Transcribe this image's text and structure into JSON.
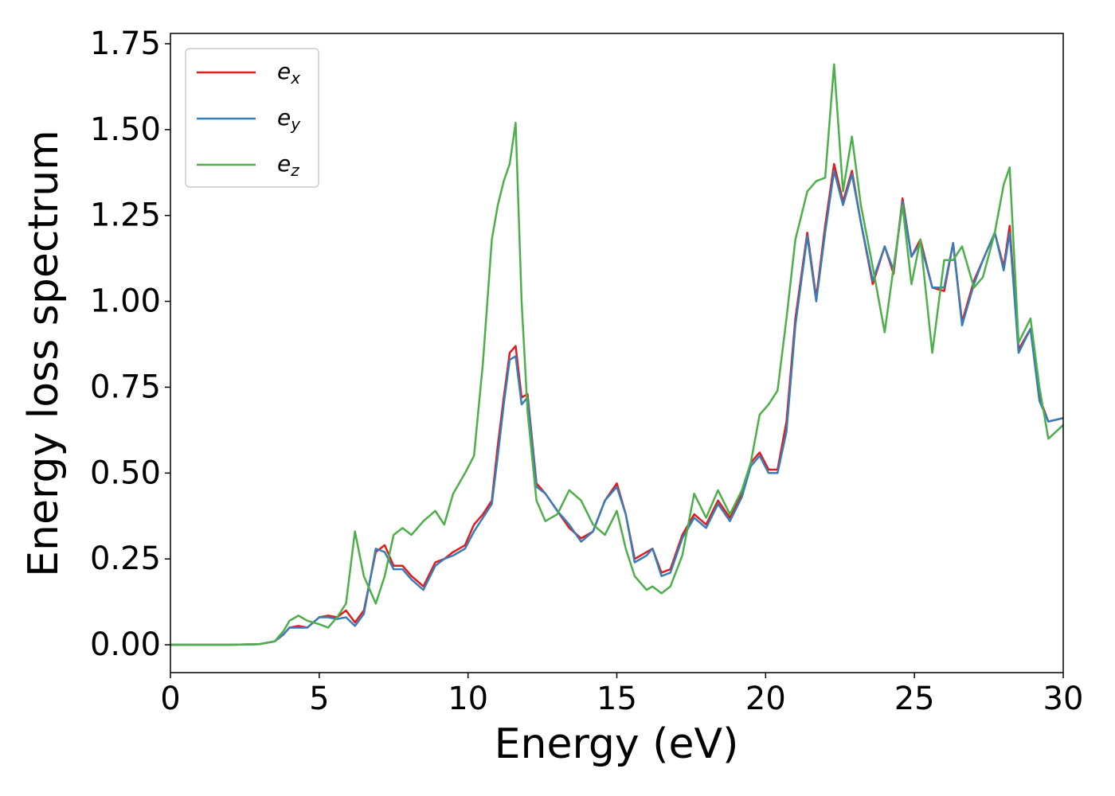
{
  "chart_data": {
    "type": "line",
    "x_label": "Energy (eV)",
    "y_label": "Energy loss spectrum",
    "xlim": [
      0,
      30
    ],
    "ylim": [
      -0.081,
      1.78
    ],
    "xticks": [
      0,
      5,
      10,
      15,
      20,
      25,
      30
    ],
    "yticks": [
      {
        "value": 0,
        "label": "0.00"
      },
      {
        "value": 0.25,
        "label": "0.25"
      },
      {
        "value": 0.5,
        "label": "0.50"
      },
      {
        "value": 0.75,
        "label": "0.75"
      },
      {
        "value": 1,
        "label": "1.00"
      },
      {
        "value": 1.25,
        "label": "1.25"
      },
      {
        "value": 1.5,
        "label": "1.50"
      },
      {
        "value": 1.75,
        "label": "1.75"
      }
    ],
    "grid": false,
    "legend": "upper left",
    "x": [
      0,
      1,
      2,
      3,
      3.5,
      3.8,
      4.0,
      4.3,
      4.6,
      5.0,
      5.3,
      5.6,
      5.9,
      6.2,
      6.5,
      6.9,
      7.2,
      7.5,
      7.8,
      8.1,
      8.5,
      8.9,
      9.2,
      9.5,
      9.9,
      10.2,
      10.5,
      10.8,
      11.0,
      11.2,
      11.4,
      11.6,
      11.8,
      12.0,
      12.3,
      12.6,
      13.0,
      13.4,
      13.8,
      14.2,
      14.6,
      15.0,
      15.3,
      15.6,
      16.0,
      16.2,
      16.5,
      16.8,
      17.2,
      17.6,
      18.0,
      18.4,
      18.8,
      19.2,
      19.5,
      19.8,
      20.1,
      20.4,
      20.7,
      21.0,
      21.4,
      21.7,
      22.0,
      22.3,
      22.6,
      22.9,
      23.2,
      23.6,
      24.0,
      24.3,
      24.6,
      24.9,
      25.2,
      25.6,
      26.0,
      26.3,
      26.6,
      27.0,
      27.3,
      27.7,
      28.0,
      28.2,
      28.5,
      28.9,
      29.2,
      29.5,
      30.0
    ],
    "series": [
      {
        "name": "ex",
        "color": "#e41a1c",
        "values": [
          0,
          0,
          0,
          0.002,
          0.01,
          0.03,
          0.05,
          0.055,
          0.05,
          0.08,
          0.085,
          0.08,
          0.1,
          0.065,
          0.1,
          0.27,
          0.29,
          0.23,
          0.23,
          0.2,
          0.17,
          0.24,
          0.25,
          0.27,
          0.29,
          0.35,
          0.38,
          0.42,
          0.58,
          0.72,
          0.85,
          0.87,
          0.72,
          0.73,
          0.47,
          0.44,
          0.39,
          0.34,
          0.31,
          0.33,
          0.42,
          0.47,
          0.38,
          0.25,
          0.27,
          0.28,
          0.21,
          0.22,
          0.32,
          0.38,
          0.35,
          0.42,
          0.37,
          0.44,
          0.53,
          0.56,
          0.51,
          0.51,
          0.65,
          0.95,
          1.2,
          1.01,
          1.22,
          1.4,
          1.29,
          1.38,
          1.23,
          1.05,
          1.16,
          1.08,
          1.3,
          1.13,
          1.18,
          1.04,
          1.03,
          1.17,
          0.94,
          1.06,
          1.12,
          1.2,
          1.1,
          1.22,
          0.86,
          0.92,
          0.72,
          0.65,
          0.66
        ]
      },
      {
        "name": "ey",
        "color": "#377eb8",
        "values": [
          0,
          0,
          0,
          0.002,
          0.01,
          0.03,
          0.05,
          0.05,
          0.05,
          0.08,
          0.08,
          0.075,
          0.08,
          0.055,
          0.09,
          0.28,
          0.27,
          0.22,
          0.22,
          0.19,
          0.16,
          0.23,
          0.25,
          0.26,
          0.28,
          0.33,
          0.37,
          0.41,
          0.55,
          0.7,
          0.83,
          0.84,
          0.7,
          0.72,
          0.46,
          0.44,
          0.39,
          0.35,
          0.3,
          0.33,
          0.42,
          0.46,
          0.38,
          0.24,
          0.26,
          0.28,
          0.2,
          0.21,
          0.31,
          0.37,
          0.34,
          0.41,
          0.36,
          0.43,
          0.52,
          0.55,
          0.5,
          0.5,
          0.62,
          0.93,
          1.19,
          1.0,
          1.2,
          1.38,
          1.28,
          1.37,
          1.23,
          1.06,
          1.16,
          1.09,
          1.29,
          1.13,
          1.17,
          1.04,
          1.04,
          1.17,
          0.93,
          1.05,
          1.12,
          1.2,
          1.09,
          1.2,
          0.85,
          0.92,
          0.71,
          0.65,
          0.66
        ]
      },
      {
        "name": "ez",
        "color": "#4daf4a",
        "values": [
          0,
          0,
          0,
          0.002,
          0.01,
          0.04,
          0.07,
          0.085,
          0.07,
          0.06,
          0.05,
          0.08,
          0.12,
          0.33,
          0.2,
          0.12,
          0.2,
          0.32,
          0.34,
          0.32,
          0.36,
          0.39,
          0.35,
          0.44,
          0.5,
          0.55,
          0.82,
          1.18,
          1.28,
          1.35,
          1.4,
          1.52,
          1.0,
          0.68,
          0.42,
          0.36,
          0.38,
          0.45,
          0.42,
          0.35,
          0.32,
          0.39,
          0.28,
          0.2,
          0.16,
          0.17,
          0.15,
          0.17,
          0.26,
          0.44,
          0.37,
          0.45,
          0.38,
          0.45,
          0.53,
          0.67,
          0.7,
          0.74,
          0.95,
          1.18,
          1.32,
          1.35,
          1.36,
          1.69,
          1.32,
          1.48,
          1.28,
          1.1,
          0.91,
          1.1,
          1.28,
          1.05,
          1.18,
          0.85,
          1.12,
          1.12,
          1.16,
          1.04,
          1.07,
          1.2,
          1.34,
          1.39,
          0.88,
          0.95,
          0.75,
          0.6,
          0.64
        ]
      }
    ]
  }
}
